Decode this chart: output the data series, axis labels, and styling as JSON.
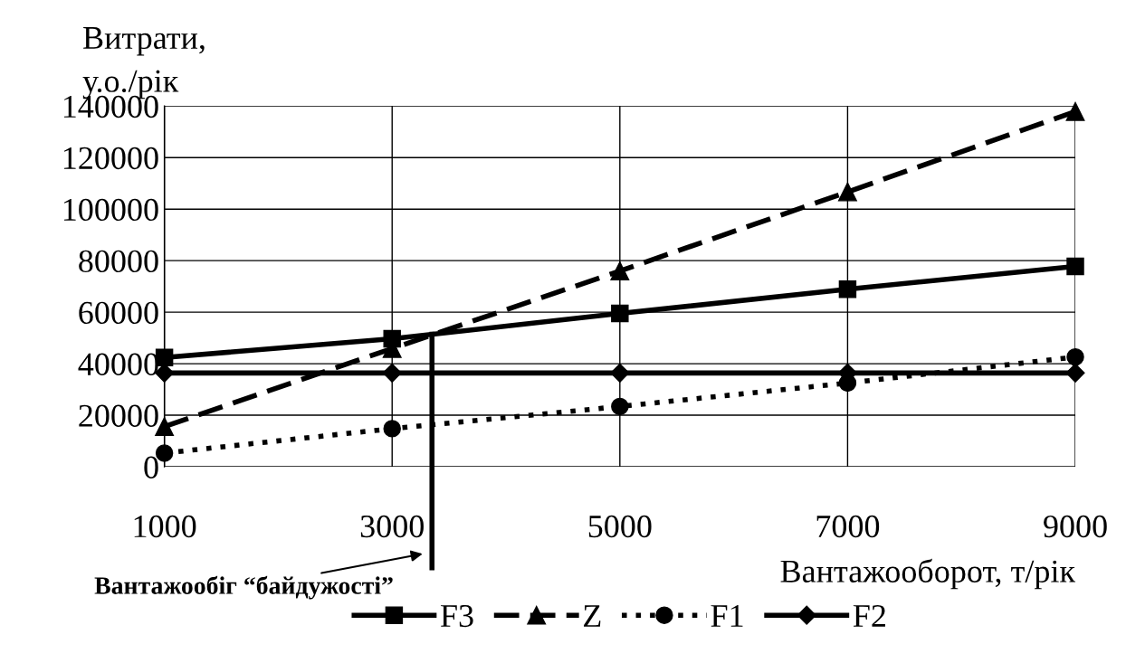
{
  "chart_data": {
    "type": "line",
    "ylabel": "Витрати,\nу.о./рік",
    "xlabel": "Вантажооборот, т/рік",
    "x": [
      1000,
      3000,
      5000,
      7000,
      9000
    ],
    "series": [
      {
        "name": "F3",
        "color": "#000000",
        "marker": "square",
        "line_style": "solid",
        "values": [
          42400,
          49700,
          59500,
          68900,
          77800
        ]
      },
      {
        "name": "Z",
        "color": "#000000",
        "marker": "triangle",
        "line_style": "dashed",
        "values": [
          15600,
          45900,
          76000,
          106700,
          137900
        ]
      },
      {
        "name": "F1",
        "color": "#000000",
        "marker": "circle",
        "line_style": "dotted",
        "values": [
          5300,
          14800,
          23400,
          32500,
          42600
        ]
      },
      {
        "name": "F2",
        "color": "#000000",
        "marker": "diamond",
        "line_style": "solid",
        "values": [
          36400,
          36400,
          36400,
          36400,
          36400
        ]
      }
    ],
    "xlim": [
      1000,
      9000
    ],
    "xticks": [
      1000,
      3000,
      5000,
      7000,
      9000
    ],
    "ylim": [
      0,
      140000
    ],
    "yticks": [
      0,
      20000,
      40000,
      60000,
      80000,
      100000,
      120000,
      140000
    ],
    "ref_lines": [
      {
        "axis": "x",
        "value": 3350,
        "label": "Вантажообіг “байдужості”",
        "color": "#000000"
      }
    ],
    "grid": true,
    "legend": "bottom"
  }
}
